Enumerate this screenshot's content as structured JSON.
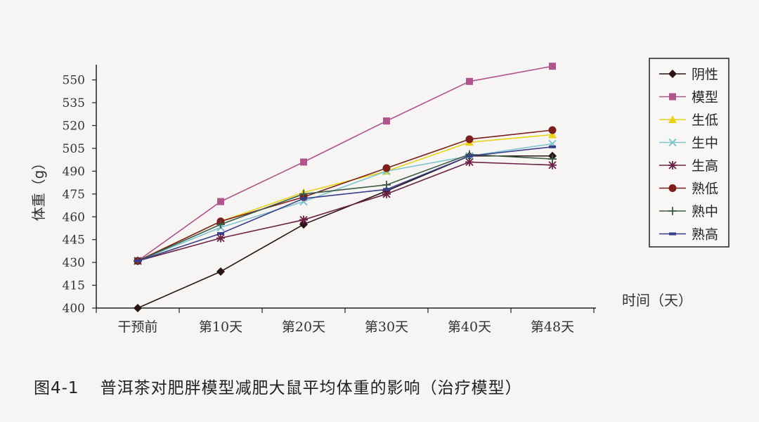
{
  "chart_data": {
    "type": "line",
    "title": "",
    "ylabel": "体重（g）",
    "xlabel": "时间（天）",
    "categories": [
      "干预前",
      "第10天",
      "第20天",
      "第30天",
      "第40天",
      "第48天"
    ],
    "yticks": [
      400,
      415,
      430,
      445,
      460,
      475,
      490,
      505,
      520,
      535,
      550
    ],
    "ylim": [
      400,
      560
    ],
    "grid": false,
    "legend_position": "top-right",
    "series": [
      {
        "name": "阴性",
        "marker": "diamond",
        "color": "#2b1414",
        "values": [
          400,
          424,
          455,
          477,
          500,
          500
        ]
      },
      {
        "name": "模型",
        "marker": "square",
        "color": "#b0558e",
        "values": [
          431,
          470,
          496,
          523,
          549,
          559
        ]
      },
      {
        "name": "生低",
        "marker": "triangle",
        "color": "#e8d21a",
        "values": [
          431,
          457,
          476,
          490,
          509,
          514
        ]
      },
      {
        "name": "生中",
        "marker": "x",
        "color": "#7fc4cf",
        "values": [
          431,
          453,
          470,
          490,
          500,
          508
        ]
      },
      {
        "name": "生高",
        "marker": "star",
        "color": "#6b2246",
        "values": [
          431,
          446,
          458,
          475,
          496,
          494
        ]
      },
      {
        "name": "熟低",
        "marker": "circle",
        "color": "#7a1f1a",
        "values": [
          431,
          457,
          473,
          492,
          511,
          517
        ]
      },
      {
        "name": "熟中",
        "marker": "plus",
        "color": "#3d5a44",
        "values": [
          431,
          455,
          475,
          481,
          501,
          498
        ]
      },
      {
        "name": "熟高",
        "marker": "dash",
        "color": "#3a3f8a",
        "values": [
          431,
          449,
          472,
          478,
          500,
          506
        ]
      }
    ]
  },
  "caption": {
    "figure_number": "图4-1",
    "text": "普洱茶对肥胖模型减肥大鼠平均体重的影响（治疗模型）"
  }
}
